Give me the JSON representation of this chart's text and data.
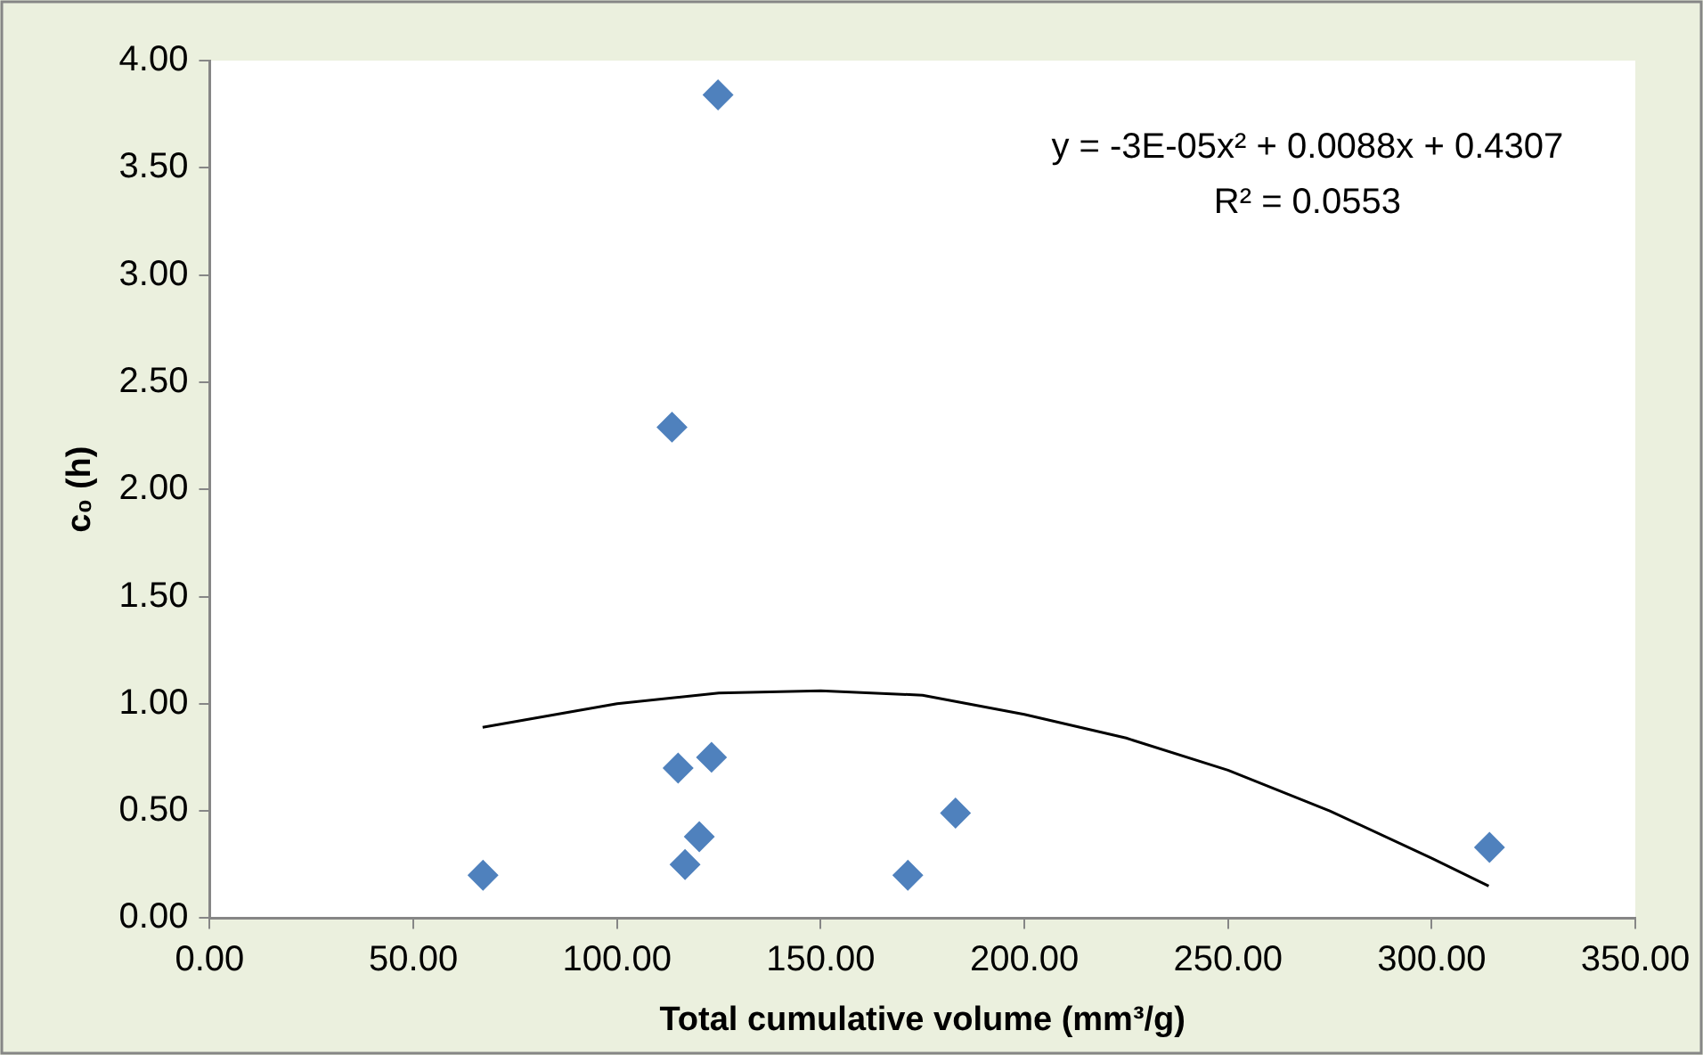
{
  "chart_data": {
    "type": "scatter",
    "xlabel": "Total cumulative volume (mm³/g)",
    "ylabel": "c₀ (h)",
    "xlim": [
      0,
      350
    ],
    "xticks": [
      {
        "value": 0,
        "label": "0.00"
      },
      {
        "value": 50,
        "label": "50.00"
      },
      {
        "value": 100,
        "label": "100.00"
      },
      {
        "value": 150,
        "label": "150.00"
      },
      {
        "value": 200,
        "label": "200.00"
      },
      {
        "value": 250,
        "label": "250.00"
      },
      {
        "value": 300,
        "label": "300.00"
      },
      {
        "value": 350,
        "label": "350.00"
      }
    ],
    "ylim": [
      0,
      4
    ],
    "yticks": [
      {
        "value": 0,
        "label": "0.00"
      },
      {
        "value": 0.5,
        "label": "0.50"
      },
      {
        "value": 1,
        "label": "1.00"
      },
      {
        "value": 1.5,
        "label": "1.50"
      },
      {
        "value": 2,
        "label": "2.00"
      },
      {
        "value": 2.5,
        "label": "2.50"
      },
      {
        "value": 3,
        "label": "3.00"
      },
      {
        "value": 3.5,
        "label": "3.50"
      },
      {
        "value": 4,
        "label": "4.00"
      }
    ],
    "grid": false,
    "legend": false,
    "series": [
      {
        "type": "scatter",
        "color": "#4f81bd",
        "marker": "diamond",
        "x": [
          67.1,
          124.8,
          113.5,
          115.0,
          123.2,
          120.2,
          116.7,
          171.4,
          183.1,
          314.2
        ],
        "values": [
          0.2,
          3.84,
          2.29,
          0.7,
          0.75,
          0.38,
          0.25,
          0.2,
          0.49,
          0.33
        ]
      },
      {
        "type": "line",
        "color": "#000000",
        "marker": "none",
        "x": [
          67,
          100,
          125,
          150,
          175,
          200,
          225,
          250,
          275,
          300,
          314
        ],
        "values": [
          0.89,
          1.0,
          1.05,
          1.06,
          1.04,
          0.95,
          0.84,
          0.69,
          0.5,
          0.28,
          0.15
        ]
      }
    ],
    "annotations": [
      "y = -3E-05x² + 0.0088x + 0.4307",
      "R² = 0.0553"
    ]
  }
}
